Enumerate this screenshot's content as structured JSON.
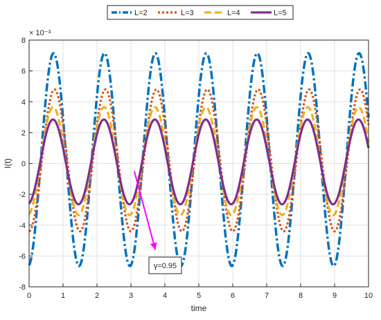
{
  "chart_data": {
    "type": "line",
    "title": "",
    "xlabel": "time",
    "ylabel": "I(t)",
    "y_exponent": "× 10⁻³",
    "xlim": [
      0,
      10
    ],
    "ylim": [
      -8,
      8
    ],
    "xticks": [
      0,
      1,
      2,
      3,
      4,
      5,
      6,
      7,
      8,
      9,
      10
    ],
    "yticks": [
      -8,
      -6,
      -4,
      -2,
      0,
      2,
      4,
      6,
      8
    ],
    "grid": true,
    "legend_position": "top-center",
    "period": 1.5,
    "annotation": {
      "text": "γ=0.95",
      "arrow_from": [
        3.1,
        -0.5
      ],
      "arrow_to": [
        3.72,
        -5.6
      ],
      "color": "#ff00ff"
    },
    "series": [
      {
        "name": "L=2",
        "color": "#0072BD",
        "style": "dashdot",
        "width": 3.5,
        "amplitude": 6.9,
        "offset": 0.25,
        "x_start": 0,
        "y_start": -6.6
      },
      {
        "name": "L=3",
        "color": "#D95319",
        "style": "dotted",
        "width": 3.2,
        "amplitude": 4.6,
        "offset": 0.2,
        "x_start": 0,
        "y_start": -4.4
      },
      {
        "name": "L=4",
        "color": "#EDB120",
        "style": "dashed",
        "width": 3.2,
        "amplitude": 3.5,
        "offset": 0.15,
        "x_start": 0,
        "y_start": -3.3
      },
      {
        "name": "L=5",
        "color": "#7E2F8E",
        "style": "solid",
        "width": 3.2,
        "amplitude": 2.75,
        "offset": 0.1,
        "x_start": 0,
        "y_start": -2.6
      }
    ]
  }
}
